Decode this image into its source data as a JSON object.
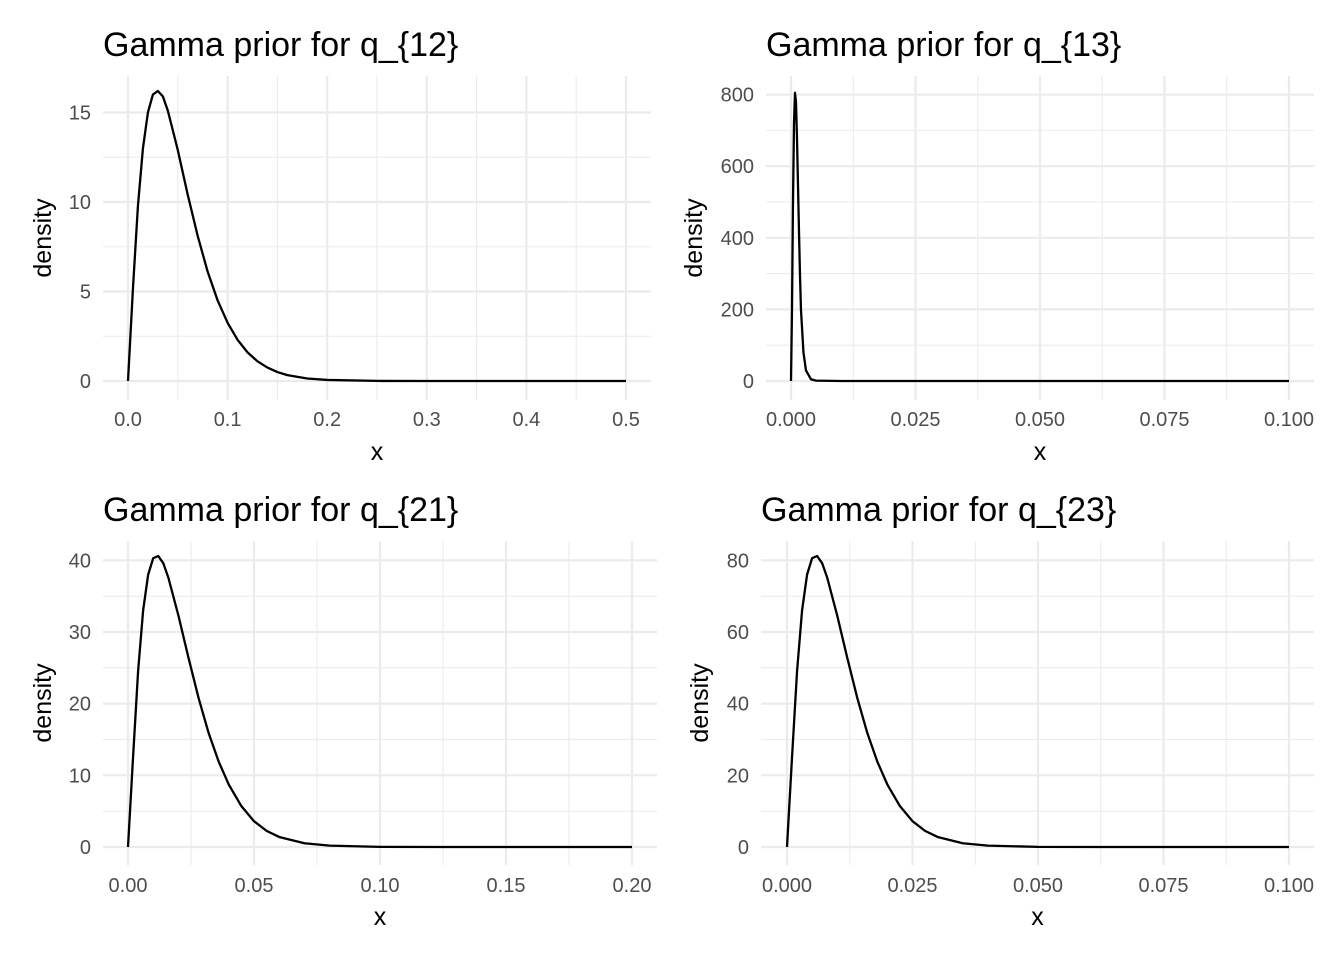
{
  "chart_data": [
    {
      "type": "line",
      "title": "Gamma prior for q_{12}",
      "xlabel": "x",
      "ylabel": "density",
      "xlim": [
        0,
        0.5
      ],
      "ylim": [
        0,
        16.2
      ],
      "x_ticks": [
        "0.0",
        "0.1",
        "0.2",
        "0.3",
        "0.4",
        "0.5"
      ],
      "y_ticks": [
        "0",
        "5",
        "10",
        "15"
      ],
      "grid": true,
      "series": [
        {
          "x": [
            0,
            0.005,
            0.01,
            0.015,
            0.02,
            0.025,
            0.03,
            0.035,
            0.04,
            0.05,
            0.06,
            0.07,
            0.08,
            0.09,
            0.1,
            0.11,
            0.12,
            0.13,
            0.14,
            0.15,
            0.16,
            0.18,
            0.2,
            0.25,
            0.3,
            0.4,
            0.5
          ],
          "values": [
            0,
            5.2,
            9.8,
            13.0,
            15.0,
            16.0,
            16.2,
            15.9,
            15.1,
            12.9,
            10.4,
            8.1,
            6.1,
            4.5,
            3.25,
            2.3,
            1.6,
            1.1,
            0.75,
            0.5,
            0.33,
            0.14,
            0.06,
            0.005,
            0,
            0,
            0
          ]
        }
      ]
    },
    {
      "type": "line",
      "title": "Gamma prior for q_{13}",
      "xlabel": "x",
      "ylabel": "density",
      "xlim": [
        0,
        0.1
      ],
      "ylim": [
        0,
        810
      ],
      "x_ticks": [
        "0.000",
        "0.025",
        "0.050",
        "0.075",
        "0.100"
      ],
      "y_ticks": [
        "0",
        "200",
        "400",
        "600",
        "800"
      ],
      "grid": true,
      "series": [
        {
          "x": [
            0,
            0.0002,
            0.0004,
            0.0006,
            0.0008,
            0.001,
            0.0012,
            0.0014,
            0.0016,
            0.0018,
            0.002,
            0.0025,
            0.003,
            0.004,
            0.005,
            0.01,
            0.1
          ],
          "values": [
            0,
            200,
            500,
            720,
            805,
            780,
            680,
            550,
            420,
            300,
            200,
            80,
            30,
            5,
            1,
            0,
            0
          ]
        }
      ]
    },
    {
      "type": "line",
      "title": "Gamma prior for q_{21}",
      "xlabel": "x",
      "ylabel": "density",
      "xlim": [
        0,
        0.2
      ],
      "ylim": [
        0,
        40.6
      ],
      "x_ticks": [
        "0.00",
        "0.05",
        "0.10",
        "0.15",
        "0.20"
      ],
      "y_ticks": [
        "0",
        "10",
        "20",
        "30",
        "40"
      ],
      "grid": true,
      "series": [
        {
          "x": [
            0,
            0.002,
            0.004,
            0.006,
            0.008,
            0.01,
            0.012,
            0.014,
            0.016,
            0.02,
            0.024,
            0.028,
            0.032,
            0.036,
            0.04,
            0.045,
            0.05,
            0.055,
            0.06,
            0.07,
            0.08,
            0.1,
            0.125,
            0.15,
            0.2
          ],
          "values": [
            0,
            12.5,
            24.5,
            33.0,
            38.0,
            40.3,
            40.6,
            39.6,
            37.6,
            32.3,
            26.4,
            20.8,
            15.9,
            11.9,
            8.7,
            5.7,
            3.6,
            2.25,
            1.4,
            0.52,
            0.19,
            0.02,
            0.002,
            0,
            0
          ]
        }
      ]
    },
    {
      "type": "line",
      "title": "Gamma prior for q_{23}",
      "xlabel": "x",
      "ylabel": "density",
      "xlim": [
        0,
        0.1
      ],
      "ylim": [
        0,
        81.2
      ],
      "x_ticks": [
        "0.000",
        "0.025",
        "0.050",
        "0.075",
        "0.100"
      ],
      "y_ticks": [
        "0",
        "20",
        "40",
        "60",
        "80"
      ],
      "grid": true,
      "series": [
        {
          "x": [
            0,
            0.001,
            0.002,
            0.003,
            0.004,
            0.005,
            0.006,
            0.007,
            0.008,
            0.01,
            0.012,
            0.014,
            0.016,
            0.018,
            0.02,
            0.0225,
            0.025,
            0.0275,
            0.03,
            0.035,
            0.04,
            0.05,
            0.0625,
            0.075,
            0.1
          ],
          "values": [
            0,
            25,
            49,
            66,
            76,
            80.6,
            81.2,
            79.2,
            75.2,
            64.6,
            52.8,
            41.6,
            31.8,
            23.8,
            17.4,
            11.4,
            7.2,
            4.5,
            2.8,
            1.04,
            0.38,
            0.04,
            0.004,
            0,
            0
          ]
        }
      ]
    }
  ]
}
